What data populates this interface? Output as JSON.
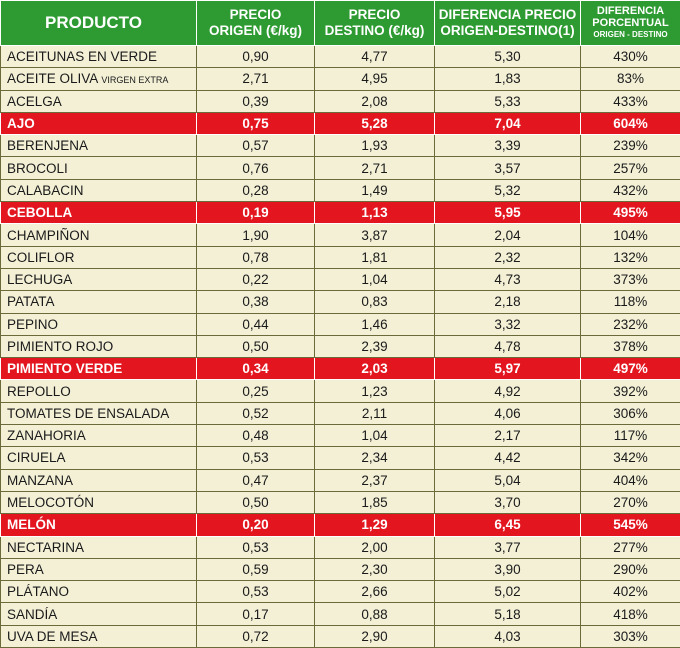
{
  "table": {
    "headers": {
      "product": "PRODUCTO",
      "origin_price_line1": "PRECIO",
      "origin_price_line2": "ORIGEN (€/kg)",
      "dest_price_line1": "PRECIO",
      "dest_price_line2": "DESTINO (€/kg)",
      "difference_line1": "DIFERENCIA PRECIO",
      "difference_line2": "ORIGEN-DESTINO(1)",
      "percent_line1": "DIFERENCIA",
      "percent_line2": "PORCENTUAL",
      "percent_line3": "ORIGEN - DESTINO"
    },
    "colors": {
      "header_green": "#2e9b32",
      "highlight_red": "#e3151f",
      "row_background": "#f3f0d6"
    },
    "rows": [
      {
        "product": "ACEITUNAS EN VERDE",
        "origin": "0,90",
        "destination": "4,77",
        "difference": "5,30",
        "percent": "430%",
        "highlight": false
      },
      {
        "product": "ACEITE OLIVA",
        "product_extra": "VIRGEN EXTRA",
        "origin": "2,71",
        "destination": "4,95",
        "difference": "1,83",
        "percent": "83%",
        "highlight": false
      },
      {
        "product": "ACELGA",
        "origin": "0,39",
        "destination": "2,08",
        "difference": "5,33",
        "percent": "433%",
        "highlight": false
      },
      {
        "product": "AJO",
        "origin": "0,75",
        "destination": "5,28",
        "difference": "7,04",
        "percent": "604%",
        "highlight": true
      },
      {
        "product": "BERENJENA",
        "origin": "0,57",
        "destination": "1,93",
        "difference": "3,39",
        "percent": "239%",
        "highlight": false
      },
      {
        "product": "BROCOLI",
        "origin": "0,76",
        "destination": "2,71",
        "difference": "3,57",
        "percent": "257%",
        "highlight": false
      },
      {
        "product": "CALABACIN",
        "origin": "0,28",
        "destination": "1,49",
        "difference": "5,32",
        "percent": "432%",
        "highlight": false
      },
      {
        "product": "CEBOLLA",
        "origin": "0,19",
        "destination": "1,13",
        "difference": "5,95",
        "percent": "495%",
        "highlight": true
      },
      {
        "product": "CHAMPIÑON",
        "origin": "1,90",
        "destination": "3,87",
        "difference": "2,04",
        "percent": "104%",
        "highlight": false
      },
      {
        "product": "COLIFLOR",
        "origin": "0,78",
        "destination": "1,81",
        "difference": "2,32",
        "percent": "132%",
        "highlight": false
      },
      {
        "product": "LECHUGA",
        "origin": "0,22",
        "destination": "1,04",
        "difference": "4,73",
        "percent": "373%",
        "highlight": false
      },
      {
        "product": "PATATA",
        "origin": "0,38",
        "destination": "0,83",
        "difference": "2,18",
        "percent": "118%",
        "highlight": false
      },
      {
        "product": "PEPINO",
        "origin": "0,44",
        "destination": "1,46",
        "difference": "3,32",
        "percent": "232%",
        "highlight": false
      },
      {
        "product": "PIMIENTO ROJO",
        "origin": "0,50",
        "destination": "2,39",
        "difference": "4,78",
        "percent": "378%",
        "highlight": false
      },
      {
        "product": "PIMIENTO VERDE",
        "origin": "0,34",
        "destination": "2,03",
        "difference": "5,97",
        "percent": "497%",
        "highlight": true
      },
      {
        "product": "REPOLLO",
        "origin": "0,25",
        "destination": "1,23",
        "difference": "4,92",
        "percent": "392%",
        "highlight": false
      },
      {
        "product": "TOMATES DE ENSALADA",
        "origin": "0,52",
        "destination": "2,11",
        "difference": "4,06",
        "percent": "306%",
        "highlight": false
      },
      {
        "product": "ZANAHORIA",
        "origin": "0,48",
        "destination": "1,04",
        "difference": "2,17",
        "percent": "117%",
        "highlight": false
      },
      {
        "product": "CIRUELA",
        "origin": "0,53",
        "destination": "2,34",
        "difference": "4,42",
        "percent": "342%",
        "highlight": false
      },
      {
        "product": "MANZANA",
        "origin": "0,47",
        "destination": "2,37",
        "difference": "5,04",
        "percent": "404%",
        "highlight": false
      },
      {
        "product": "MELOCOTÓN",
        "origin": "0,50",
        "destination": "1,85",
        "difference": "3,70",
        "percent": "270%",
        "highlight": false
      },
      {
        "product": "MELÓN",
        "origin": "0,20",
        "destination": "1,29",
        "difference": "6,45",
        "percent": "545%",
        "highlight": true
      },
      {
        "product": "NECTARINA",
        "origin": "0,53",
        "destination": "2,00",
        "difference": "3,77",
        "percent": "277%",
        "highlight": false
      },
      {
        "product": "PERA",
        "origin": "0,59",
        "destination": "2,30",
        "difference": "3,90",
        "percent": "290%",
        "highlight": false
      },
      {
        "product": "PLÁTANO",
        "origin": "0,53",
        "destination": "2,66",
        "difference": "5,02",
        "percent": "402%",
        "highlight": false
      },
      {
        "product": "SANDÍA",
        "origin": "0,17",
        "destination": "0,88",
        "difference": "5,18",
        "percent": "418%",
        "highlight": false
      },
      {
        "product": "UVA DE MESA",
        "origin": "0,72",
        "destination": "2,90",
        "difference": "4,03",
        "percent": "303%",
        "highlight": false
      }
    ]
  }
}
